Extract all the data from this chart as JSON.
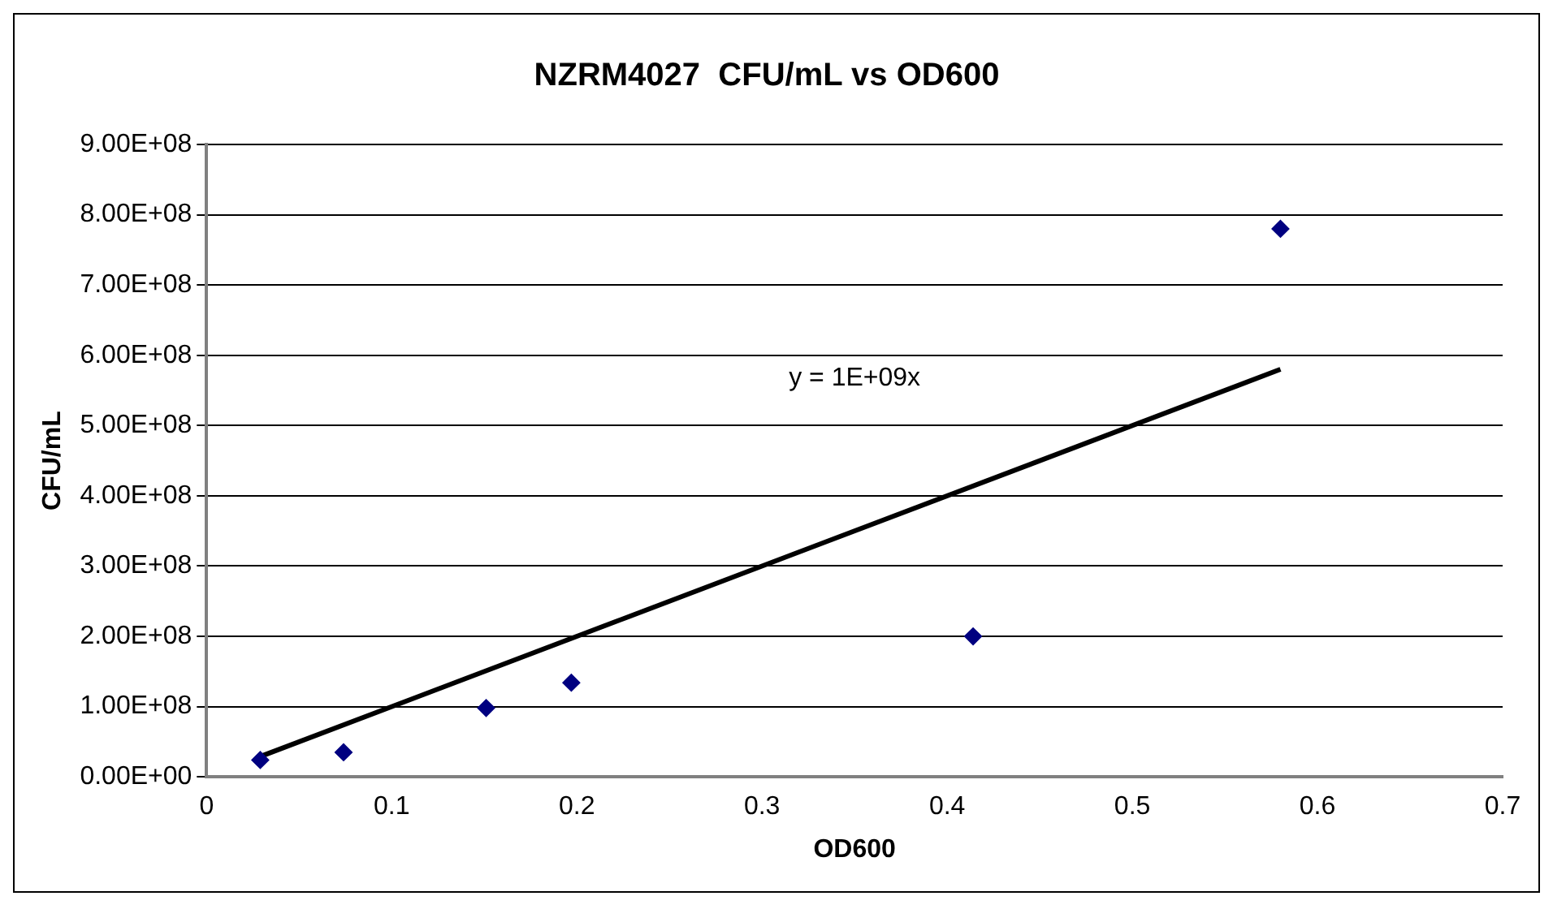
{
  "chart_data": {
    "type": "scatter",
    "title": "NZRM4027  CFU/mL vs OD600",
    "xlabel": "OD600",
    "ylabel": "CFU/mL",
    "series": [
      {
        "type": "scatter",
        "color": "#000080",
        "marker": "diamond",
        "x": [
          0.029,
          0.074,
          0.151,
          0.197,
          0.414,
          0.58
        ],
        "values": [
          24000000,
          35000000,
          98000000,
          134000000,
          200000000,
          780000000
        ]
      },
      {
        "type": "line",
        "color": "#000000",
        "marker": "none",
        "x": [
          0.029,
          0.58
        ],
        "values": [
          29000000,
          580000000
        ]
      }
    ],
    "xlim": [
      0,
      0.7
    ],
    "xticks": [
      0,
      0.1,
      0.2,
      0.3,
      0.4,
      0.5,
      0.6,
      0.7
    ],
    "ylim": [
      0,
      900000000
    ],
    "yticks": [
      {
        "value": 0,
        "label": "0.00E+00"
      },
      {
        "value": 100000000,
        "label": "1.00E+08"
      },
      {
        "value": 200000000,
        "label": "2.00E+08"
      },
      {
        "value": 300000000,
        "label": "3.00E+08"
      },
      {
        "value": 400000000,
        "label": "4.00E+08"
      },
      {
        "value": 500000000,
        "label": "5.00E+08"
      },
      {
        "value": 600000000,
        "label": "6.00E+08"
      },
      {
        "value": 700000000,
        "label": "7.00E+08"
      },
      {
        "value": 800000000,
        "label": "8.00E+08"
      },
      {
        "value": 900000000,
        "label": "9.00E+08"
      }
    ],
    "grid": "y",
    "legend": false,
    "annotations": [
      "y = 1E+09x"
    ]
  }
}
